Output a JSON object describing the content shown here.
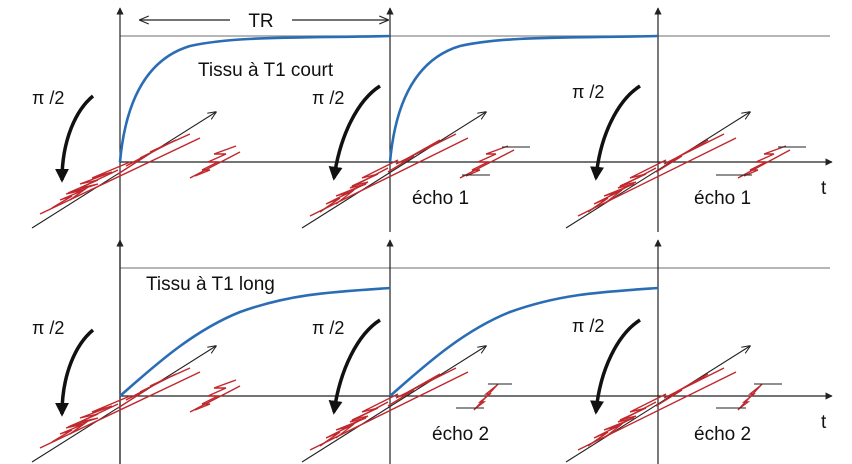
{
  "labels": {
    "tr": "TR",
    "axis_t": "t",
    "pulse": "π /2",
    "top_tissue": "Tissu à T1 court",
    "bottom_tissue": "Tissu à T1 long",
    "echo_top": "écho 1",
    "echo_bottom": "écho 2"
  },
  "colors": {
    "curve": "#2a6db5",
    "signal": "#c0282d",
    "axis": "#222222",
    "baseline": "#8a8a8a"
  },
  "icons": {
    "pulse_arrow": "curved-arrow-down-icon",
    "axis_arrow": "arrow-up-icon"
  }
}
